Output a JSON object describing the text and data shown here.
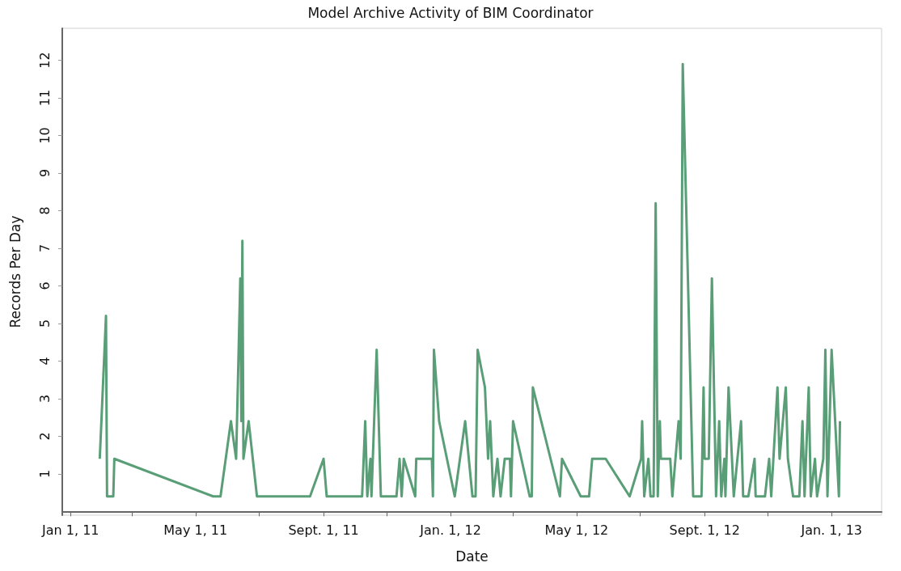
{
  "chart_data": {
    "type": "line",
    "title": "Model Archive Activity of BIM Coordinator",
    "xlabel": "Date",
    "ylabel": "Records Per Day",
    "x": [
      "2011-01-29",
      "2011-02-04",
      "2011-02-05",
      "2011-02-11",
      "2011-02-12",
      "2011-05-18",
      "2011-05-25",
      "2011-06-04",
      "2011-06-09",
      "2011-06-13",
      "2011-06-14",
      "2011-06-15",
      "2011-06-16",
      "2011-06-21",
      "2011-06-29",
      "2011-08-19",
      "2011-09-01",
      "2011-09-04",
      "2011-10-08",
      "2011-10-11",
      "2011-10-13",
      "2011-10-16",
      "2011-10-17",
      "2011-10-22",
      "2011-10-26",
      "2011-11-10",
      "2011-11-13",
      "2011-11-15",
      "2011-11-17",
      "2011-11-28",
      "2011-11-29",
      "2011-12-14",
      "2011-12-15",
      "2011-12-16",
      "2011-12-21",
      "2012-01-05",
      "2012-01-15",
      "2012-01-22",
      "2012-01-25",
      "2012-01-27",
      "2012-02-03",
      "2012-02-06",
      "2012-02-08",
      "2012-02-11",
      "2012-02-15",
      "2012-02-18",
      "2012-02-22",
      "2012-02-27",
      "2012-02-28",
      "2012-03-01",
      "2012-03-17",
      "2012-03-19",
      "2012-03-20",
      "2012-04-15",
      "2012-04-17",
      "2012-05-05",
      "2012-05-13",
      "2012-05-16",
      "2012-05-29",
      "2012-06-21",
      "2012-07-02",
      "2012-07-03",
      "2012-07-05",
      "2012-07-09",
      "2012-07-11",
      "2012-07-14",
      "2012-07-16",
      "2012-07-18",
      "2012-07-20",
      "2012-07-21",
      "2012-07-30",
      "2012-08-01",
      "2012-08-07",
      "2012-08-09",
      "2012-08-11",
      "2012-08-21",
      "2012-08-29",
      "2012-08-31",
      "2012-09-01",
      "2012-09-05",
      "2012-09-08",
      "2012-09-12",
      "2012-09-15",
      "2012-09-17",
      "2012-09-20",
      "2012-09-21",
      "2012-09-24",
      "2012-09-29",
      "2012-10-06",
      "2012-10-08",
      "2012-10-13",
      "2012-10-19",
      "2012-10-20",
      "2012-10-29",
      "2012-11-02",
      "2012-11-04",
      "2012-11-10",
      "2012-11-12",
      "2012-11-18",
      "2012-11-20",
      "2012-11-25",
      "2012-12-01",
      "2012-12-04",
      "2012-12-06",
      "2012-12-10",
      "2012-12-12",
      "2012-12-16",
      "2012-12-18",
      "2012-12-24",
      "2012-12-26",
      "2012-12-28",
      "2013-01-01",
      "2013-01-08",
      "2013-01-09"
    ],
    "series": [
      {
        "color": "#5a9e78",
        "values": [
          1.4,
          5.2,
          0.4,
          0.4,
          1.4,
          0.4,
          0.4,
          2.4,
          1.4,
          6.2,
          2.4,
          7.2,
          1.4,
          2.4,
          0.4,
          0.4,
          1.4,
          0.4,
          0.4,
          2.4,
          0.4,
          1.4,
          0.4,
          4.3,
          0.4,
          0.4,
          1.4,
          0.4,
          1.4,
          0.4,
          1.4,
          1.4,
          0.4,
          4.3,
          2.4,
          0.4,
          2.4,
          0.4,
          0.4,
          4.3,
          3.3,
          1.4,
          2.4,
          0.4,
          1.4,
          0.4,
          1.4,
          1.4,
          0.4,
          2.4,
          0.4,
          0.4,
          3.3,
          0.4,
          1.4,
          0.4,
          0.4,
          1.4,
          1.4,
          0.4,
          1.4,
          2.4,
          0.4,
          1.4,
          0.4,
          0.4,
          8.2,
          0.4,
          2.4,
          1.4,
          1.4,
          0.4,
          2.4,
          1.4,
          11.9,
          0.4,
          0.4,
          3.3,
          1.4,
          1.4,
          6.2,
          0.4,
          2.4,
          0.4,
          1.4,
          0.4,
          3.3,
          0.4,
          2.4,
          0.4,
          0.4,
          1.4,
          0.4,
          0.4,
          1.4,
          0.4,
          3.3,
          1.4,
          3.3,
          1.4,
          0.4,
          0.4,
          2.4,
          0.4,
          3.3,
          0.4,
          1.4,
          0.4,
          1.4,
          4.3,
          0.4,
          4.3,
          0.4,
          2.4
        ]
      }
    ],
    "xlim": [
      "2010-12-24",
      "2013-02-18"
    ],
    "xticks": [
      {
        "value": "2011-01-01",
        "label": "Jan 1, 11"
      },
      {
        "value": "2011-03-01",
        "label": null
      },
      {
        "value": "2011-05-01",
        "label": "May 1, 11"
      },
      {
        "value": "2011-07-01",
        "label": null
      },
      {
        "value": "2011-09-01",
        "label": "Sept. 1, 11"
      },
      {
        "value": "2011-11-01",
        "label": null
      },
      {
        "value": "2012-01-01",
        "label": "Jan. 1, 12"
      },
      {
        "value": "2012-03-01",
        "label": null
      },
      {
        "value": "2012-05-01",
        "label": "May 1, 12"
      },
      {
        "value": "2012-07-01",
        "label": null
      },
      {
        "value": "2012-09-01",
        "label": "Sept. 1, 12"
      },
      {
        "value": "2012-11-01",
        "label": null
      },
      {
        "value": "2013-01-01",
        "label": "Jan. 1, 13"
      }
    ],
    "ylim": [
      -0.1,
      12.85
    ],
    "yticks": [
      1,
      2,
      3,
      4,
      5,
      6,
      7,
      8,
      9,
      10,
      11,
      12
    ],
    "grid": false,
    "marker": "none",
    "line_style": "solid"
  }
}
